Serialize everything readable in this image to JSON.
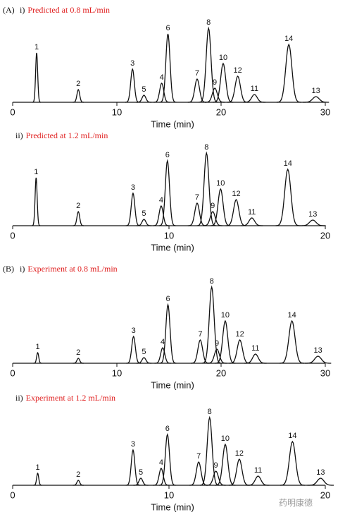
{
  "chart_data": [
    {
      "type": "chromatogram",
      "panel": "(A)",
      "title_prefix": "i)",
      "title": "Predicted at 0.8 mL/min",
      "x_label": "Time (min)",
      "categories": [
        "1",
        "2",
        "3",
        "4",
        "5",
        "6",
        "7",
        "8",
        "9",
        "10",
        "11",
        "12",
        "13",
        "14"
      ],
      "x": [
        2.3,
        6.3,
        11.5,
        14.3,
        12.6,
        14.9,
        17.7,
        18.8,
        19.4,
        20.2,
        23.2,
        21.6,
        29.1,
        26.5
      ],
      "values": [
        70,
        18,
        47,
        27,
        10,
        97,
        33,
        105,
        20,
        55,
        11,
        37,
        8,
        82
      ],
      "xlim": [
        0,
        30
      ],
      "xticks": [
        0,
        10,
        20,
        30
      ],
      "ylim": [
        0,
        110
      ],
      "color": "#111111"
    },
    {
      "type": "chromatogram",
      "title_prefix": "ii)",
      "title": "Predicted at 1.2 mL/min",
      "x_label": "Time (min)",
      "categories": [
        "1",
        "2",
        "3",
        "4",
        "5",
        "6",
        "7",
        "8",
        "9",
        "10",
        "11",
        "12",
        "13",
        "14"
      ],
      "x": [
        1.5,
        4.2,
        7.7,
        9.5,
        8.4,
        9.9,
        11.8,
        12.4,
        12.8,
        13.3,
        15.3,
        14.3,
        19.2,
        17.6
      ],
      "values": [
        68,
        20,
        46,
        28,
        9,
        92,
        32,
        103,
        20,
        52,
        11,
        37,
        8,
        80
      ],
      "xlim": [
        0,
        20
      ],
      "xticks": [
        0,
        10,
        20
      ],
      "ylim": [
        0,
        110
      ],
      "color": "#111111"
    },
    {
      "type": "chromatogram",
      "panel": "(B)",
      "title_prefix": "i)",
      "title": "Experiment at 0.8 mL/min",
      "x_label": "Time (min)",
      "categories": [
        "1",
        "2",
        "3",
        "4",
        "5",
        "6",
        "7",
        "8",
        "9",
        "10",
        "11",
        "12",
        "13",
        "14"
      ],
      "x": [
        2.4,
        6.3,
        11.6,
        14.4,
        12.6,
        14.9,
        18.0,
        19.1,
        19.6,
        20.4,
        23.3,
        21.8,
        29.3,
        26.8
      ],
      "values": [
        15,
        7,
        38,
        22,
        8,
        83,
        33,
        108,
        20,
        60,
        13,
        33,
        10,
        60
      ],
      "xlim": [
        0,
        30
      ],
      "xticks": [
        0,
        10,
        20,
        30
      ],
      "ylim": [
        0,
        110
      ],
      "color": "#111111"
    },
    {
      "type": "chromatogram",
      "title_prefix": "ii)",
      "title": "Experiment at 1.2 mL/min",
      "x_label": "Time (min)",
      "categories": [
        "1",
        "2",
        "3",
        "4",
        "5",
        "6",
        "7",
        "8",
        "9",
        "10",
        "11",
        "12",
        "13",
        "14"
      ],
      "x": [
        1.6,
        4.2,
        7.7,
        9.5,
        8.2,
        9.9,
        11.9,
        12.6,
        13.0,
        13.6,
        15.7,
        14.5,
        19.7,
        17.9
      ],
      "values": [
        17,
        7,
        50,
        24,
        10,
        72,
        33,
        96,
        20,
        58,
        13,
        37,
        10,
        62
      ],
      "xlim": [
        0,
        20
      ],
      "xticks": [
        0,
        10,
        20
      ],
      "ylim": [
        0,
        110
      ],
      "color": "#111111"
    }
  ],
  "watermark": "药明康德"
}
